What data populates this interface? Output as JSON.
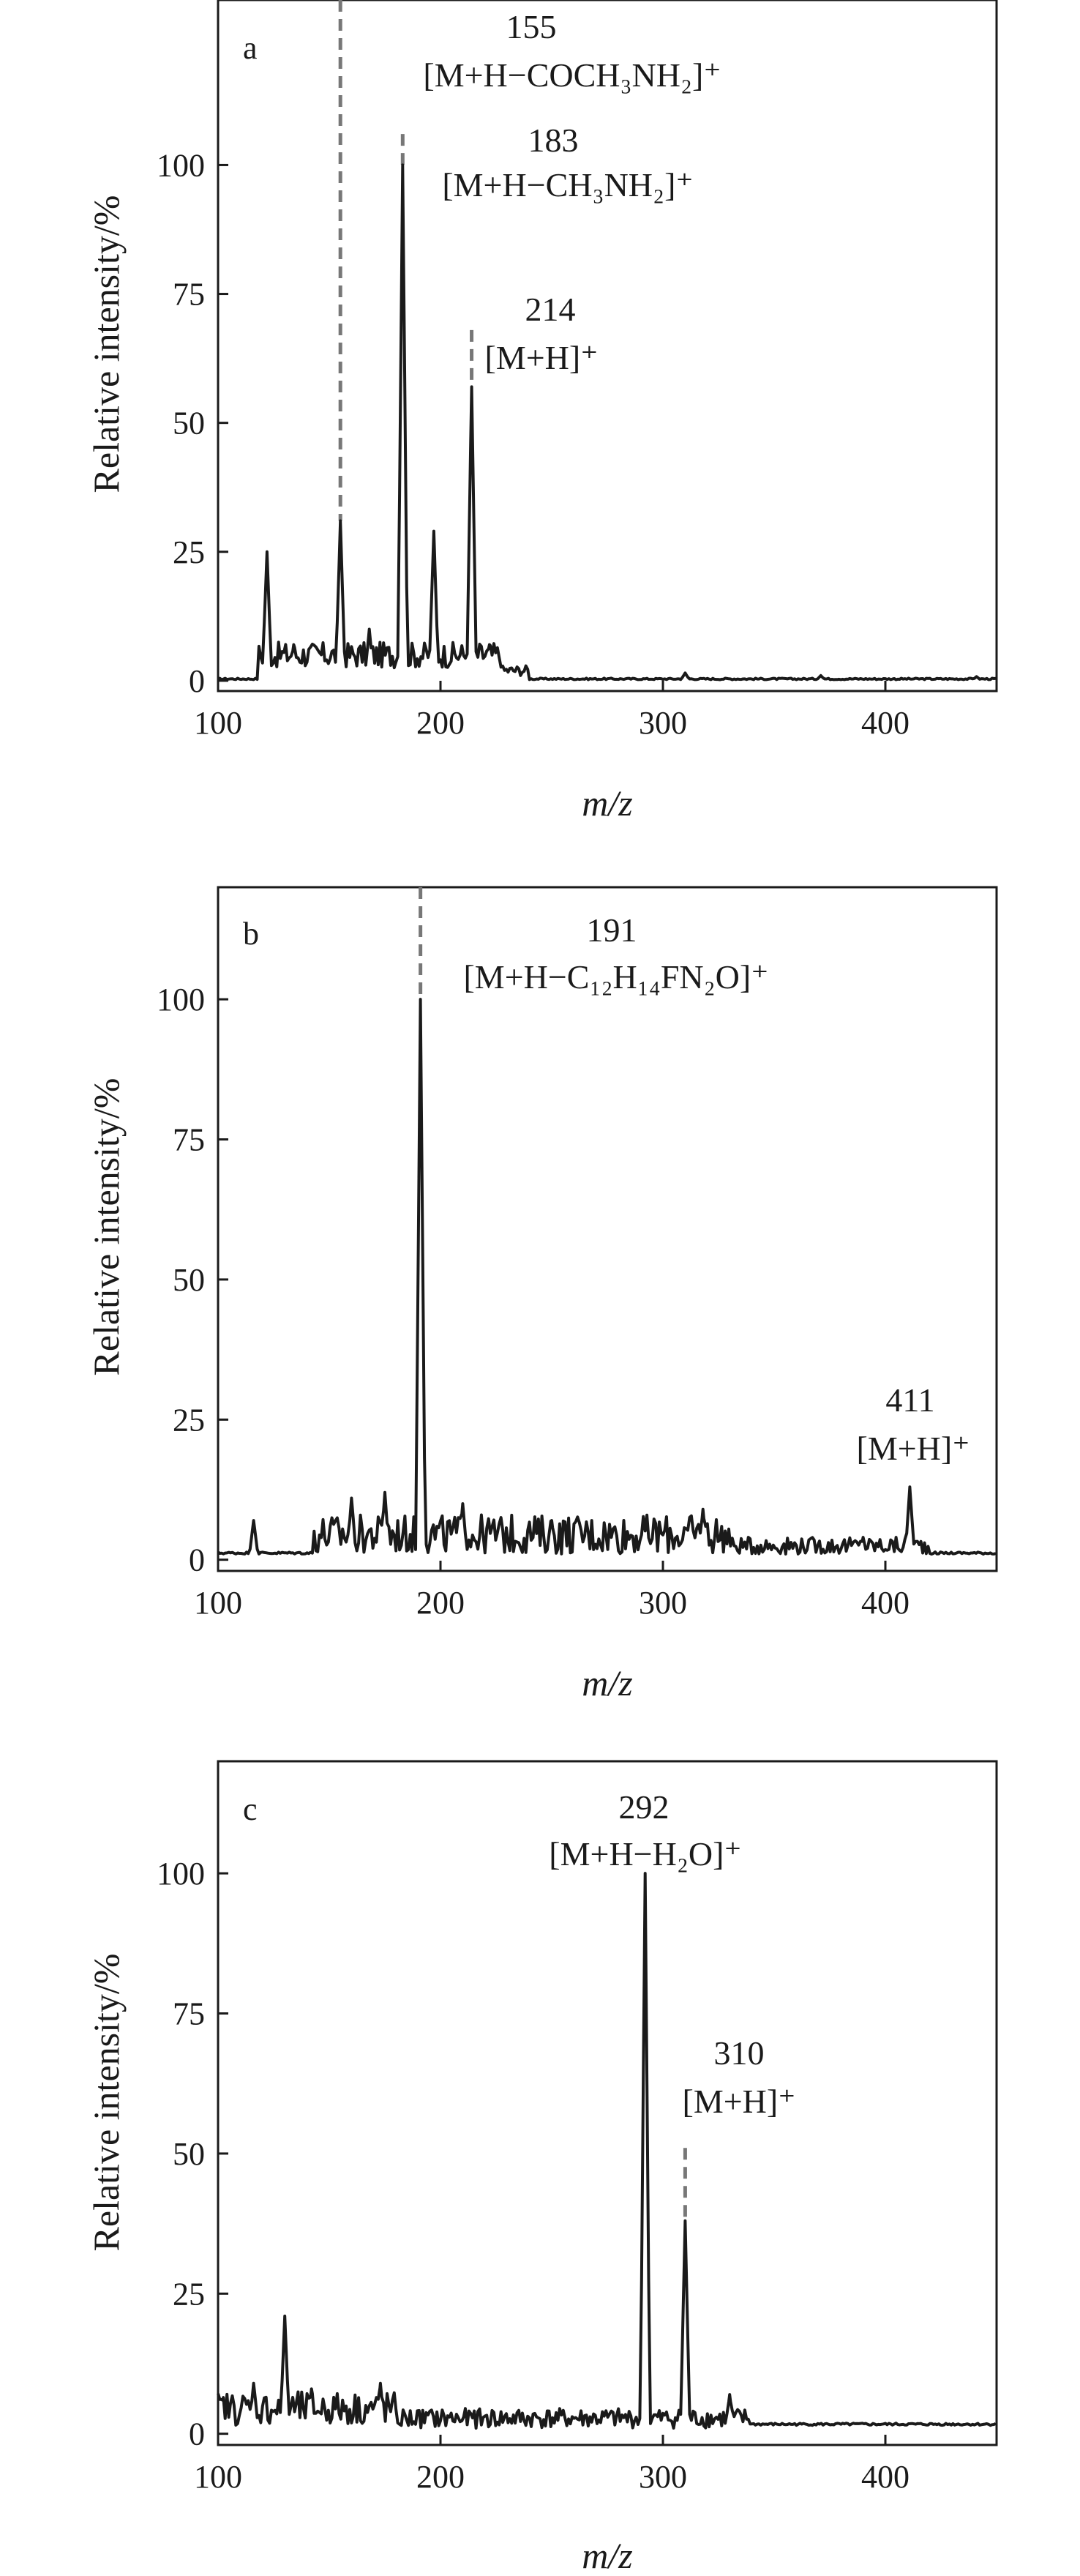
{
  "chart_data": [
    {
      "type": "line",
      "panel_label": "a",
      "xlabel": "m/z",
      "ylabel": "Relative intensity/%",
      "xlim": [
        100,
        450
      ],
      "ylim": [
        -2,
        132
      ],
      "xticks": [
        100,
        200,
        300,
        400
      ],
      "yticks": [
        0,
        25,
        50,
        75,
        100
      ],
      "grid": false,
      "line_color": "#1a1a1a",
      "marker_color": "#777777",
      "peaks": [
        {
          "x": 122,
          "y": 25
        },
        {
          "x": 134,
          "y": 7
        },
        {
          "x": 155,
          "y": 31
        },
        {
          "x": 168,
          "y": 10
        },
        {
          "x": 183,
          "y": 100
        },
        {
          "x": 197,
          "y": 29
        },
        {
          "x": 214,
          "y": 57
        },
        {
          "x": 222,
          "y": 7
        },
        {
          "x": 310,
          "y": 1.5
        },
        {
          "x": 371,
          "y": 1
        },
        {
          "x": 441,
          "y": 0.8
        }
      ],
      "annotations": [
        {
          "x": 155,
          "marker_top": 132,
          "number": "155",
          "label": "[M+H−COCH₃NH₂]⁺"
        },
        {
          "x": 183,
          "marker_top": 106,
          "number": "183",
          "label": "[M+H−CH₃NH₂]⁺"
        },
        {
          "x": 214,
          "marker_top": 68,
          "number": "214",
          "label": "[M+H]⁺"
        }
      ]
    },
    {
      "type": "line",
      "panel_label": "b",
      "xlabel": "m/z",
      "ylabel": "Relative intensity/%",
      "xlim": [
        100,
        450
      ],
      "ylim": [
        -2,
        120
      ],
      "xticks": [
        100,
        200,
        300,
        400
      ],
      "yticks": [
        0,
        25,
        50,
        75,
        100
      ],
      "grid": false,
      "line_color": "#1a1a1a",
      "marker_color": "#777777",
      "peaks": [
        {
          "x": 116,
          "y": 7
        },
        {
          "x": 160,
          "y": 11
        },
        {
          "x": 175,
          "y": 12
        },
        {
          "x": 191,
          "y": 100
        },
        {
          "x": 210,
          "y": 10
        },
        {
          "x": 250,
          "y": 7
        },
        {
          "x": 318,
          "y": 9
        },
        {
          "x": 390,
          "y": 4
        },
        {
          "x": 411,
          "y": 13
        }
      ],
      "annotations": [
        {
          "x": 191,
          "marker_top": 120,
          "number": "191",
          "label": "[M+H−C₁₂H₁₄FN₂O]⁺"
        },
        {
          "x": 411,
          "marker_top": null,
          "number": "411",
          "label": "[M+H]⁺"
        }
      ]
    },
    {
      "type": "line",
      "panel_label": "c",
      "xlabel": "m/z",
      "ylabel": "Relative intensity/%",
      "xlim": [
        100,
        450
      ],
      "ylim": [
        -2,
        120
      ],
      "xticks": [
        100,
        200,
        300,
        400
      ],
      "yticks": [
        0,
        25,
        50,
        75,
        100
      ],
      "grid": false,
      "line_color": "#1a1a1a",
      "marker_color": "#777777",
      "peaks": [
        {
          "x": 102,
          "y": 6
        },
        {
          "x": 116,
          "y": 9
        },
        {
          "x": 130,
          "y": 21
        },
        {
          "x": 142,
          "y": 8
        },
        {
          "x": 173,
          "y": 9
        },
        {
          "x": 292,
          "y": 100
        },
        {
          "x": 310,
          "y": 38
        },
        {
          "x": 330,
          "y": 7
        }
      ],
      "annotations": [
        {
          "x": 292,
          "marker_top": null,
          "number": "292",
          "label": "[M+H−H₂O]⁺"
        },
        {
          "x": 310,
          "marker_top": 51,
          "number": "310",
          "label": "[M+H]⁺"
        }
      ]
    }
  ]
}
